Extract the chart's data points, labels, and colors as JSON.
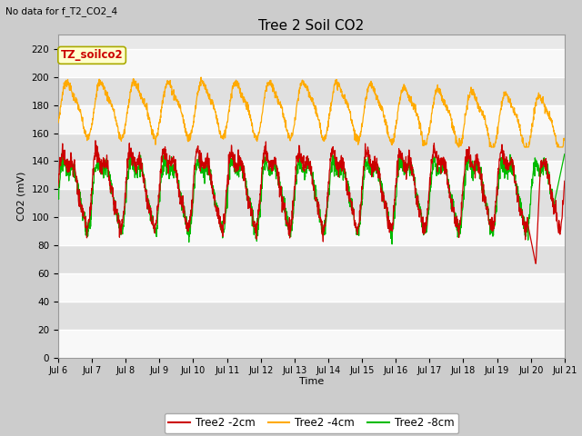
{
  "title": "Tree 2 Soil CO2",
  "subtitle": "No data for f_T2_CO2_4",
  "ylabel": "CO2 (mV)",
  "xlabel": "Time",
  "ylim": [
    0,
    230
  ],
  "yticks": [
    0,
    20,
    40,
    60,
    80,
    100,
    120,
    140,
    160,
    180,
    200,
    220
  ],
  "xtick_labels": [
    "Jul 6",
    "Jul 7",
    "Jul 8",
    "Jul 9",
    "Jul 10",
    "Jul 11",
    "Jul 12",
    "Jul 13",
    "Jul 14",
    "Jul 15",
    "Jul 16",
    "Jul 17",
    "Jul 18",
    "Jul 19",
    "Jul 20",
    "Jul 21"
  ],
  "legend_labels": [
    "Tree2 -2cm",
    "Tree2 -4cm",
    "Tree2 -8cm"
  ],
  "line_colors": [
    "#cc0000",
    "#ffaa00",
    "#00bb00"
  ],
  "annotation_box_label": "TZ_soilco2",
  "annotation_box_color": "#ffffcc",
  "annotation_box_text_color": "#cc0000",
  "annotation_box_edge_color": "#aaaa00",
  "fig_bg_color": "#cccccc",
  "plot_bg_color": "#e8e8e8",
  "grid_color": "#ffffff",
  "n_points": 2000,
  "days": 15,
  "orange_base": 178,
  "orange_amp": 18,
  "red_base": 123,
  "red_amp": 24,
  "green_base": 120,
  "green_amp": 22
}
